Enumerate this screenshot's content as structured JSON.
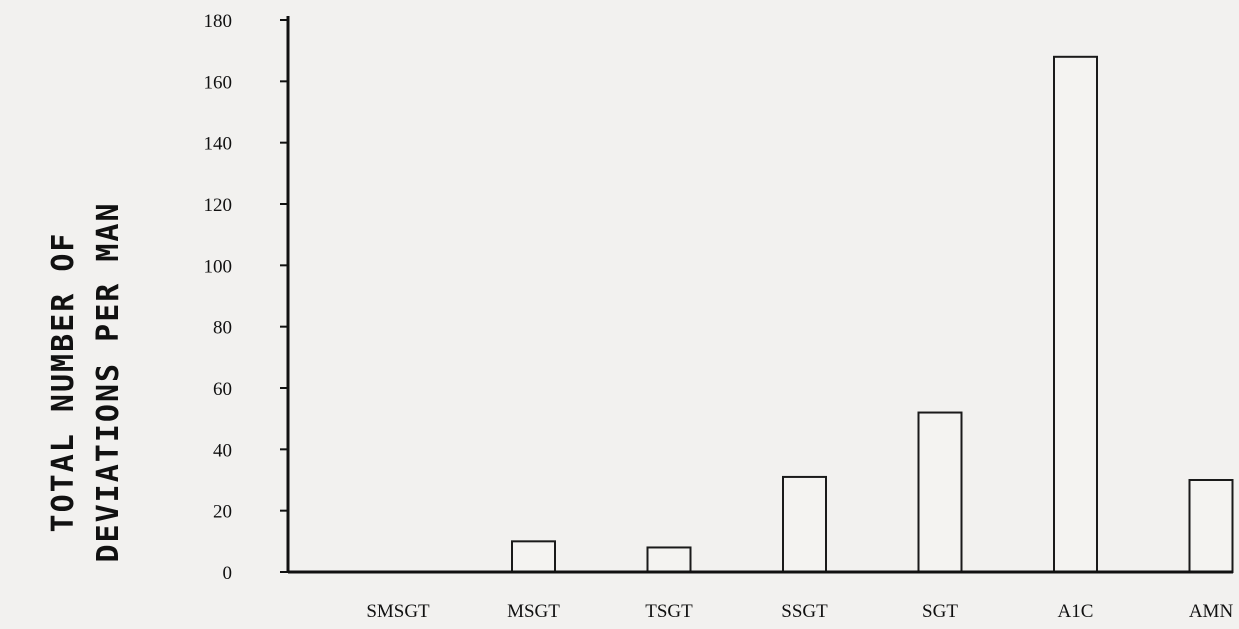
{
  "chart_data": {
    "type": "bar",
    "title": "",
    "xlabel": "",
    "ylabel_lines": [
      "TOTAL NUMBER OF",
      "DEVIATIONS PER MAN"
    ],
    "categories": [
      "SMSGT",
      "MSGT",
      "TSGT",
      "SSGT",
      "SGT",
      "A1C",
      "AMN"
    ],
    "values": [
      0,
      10,
      8,
      31,
      52,
      168,
      30
    ],
    "ylim": [
      0,
      180
    ],
    "yticks": [
      0,
      20,
      40,
      60,
      80,
      100,
      120,
      140,
      160,
      180
    ],
    "grid": false,
    "legend": "none"
  }
}
